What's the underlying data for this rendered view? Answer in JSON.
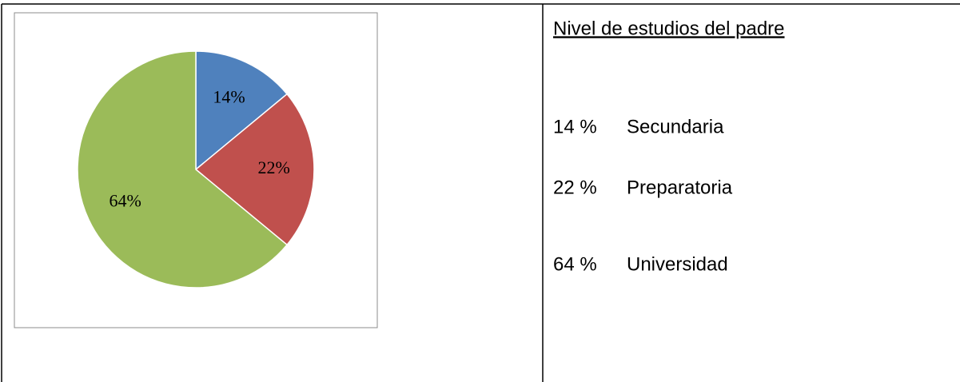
{
  "chart_data": {
    "type": "pie",
    "categories": [
      "Secundaria",
      "Preparatoria",
      "Universidad"
    ],
    "values": [
      14,
      22,
      64
    ],
    "value_labels": [
      "14%",
      "22%",
      "64%"
    ],
    "colors": [
      "#4f81bd",
      "#c0504d",
      "#9bbb59"
    ]
  },
  "side": {
    "title": "Nivel de estudios del padre",
    "percent_labels": [
      "14 %",
      "22 %",
      "64 %"
    ]
  }
}
